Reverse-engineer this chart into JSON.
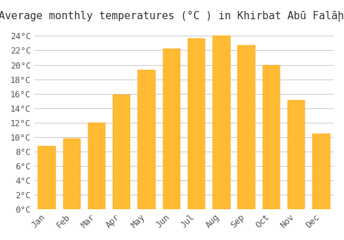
{
  "title": "Average monthly temperatures (°C ) in Khirbat Abū Falāḩ â¸",
  "months": [
    "Jan",
    "Feb",
    "Mar",
    "Apr",
    "May",
    "Jun",
    "Jul",
    "Aug",
    "Sep",
    "Oct",
    "Nov",
    "Dec"
  ],
  "values": [
    8.7,
    9.8,
    12.0,
    15.9,
    19.3,
    22.2,
    23.7,
    24.0,
    22.7,
    20.0,
    15.1,
    10.5
  ],
  "bar_color": "#FFA500",
  "bar_edge_color": "#FFB732",
  "background_color": "#ffffff",
  "grid_color": "#cccccc",
  "ylim": [
    0,
    25
  ],
  "ytick_step": 2,
  "title_fontsize": 11,
  "tick_fontsize": 9,
  "figsize": [
    5.0,
    3.5
  ],
  "dpi": 100
}
